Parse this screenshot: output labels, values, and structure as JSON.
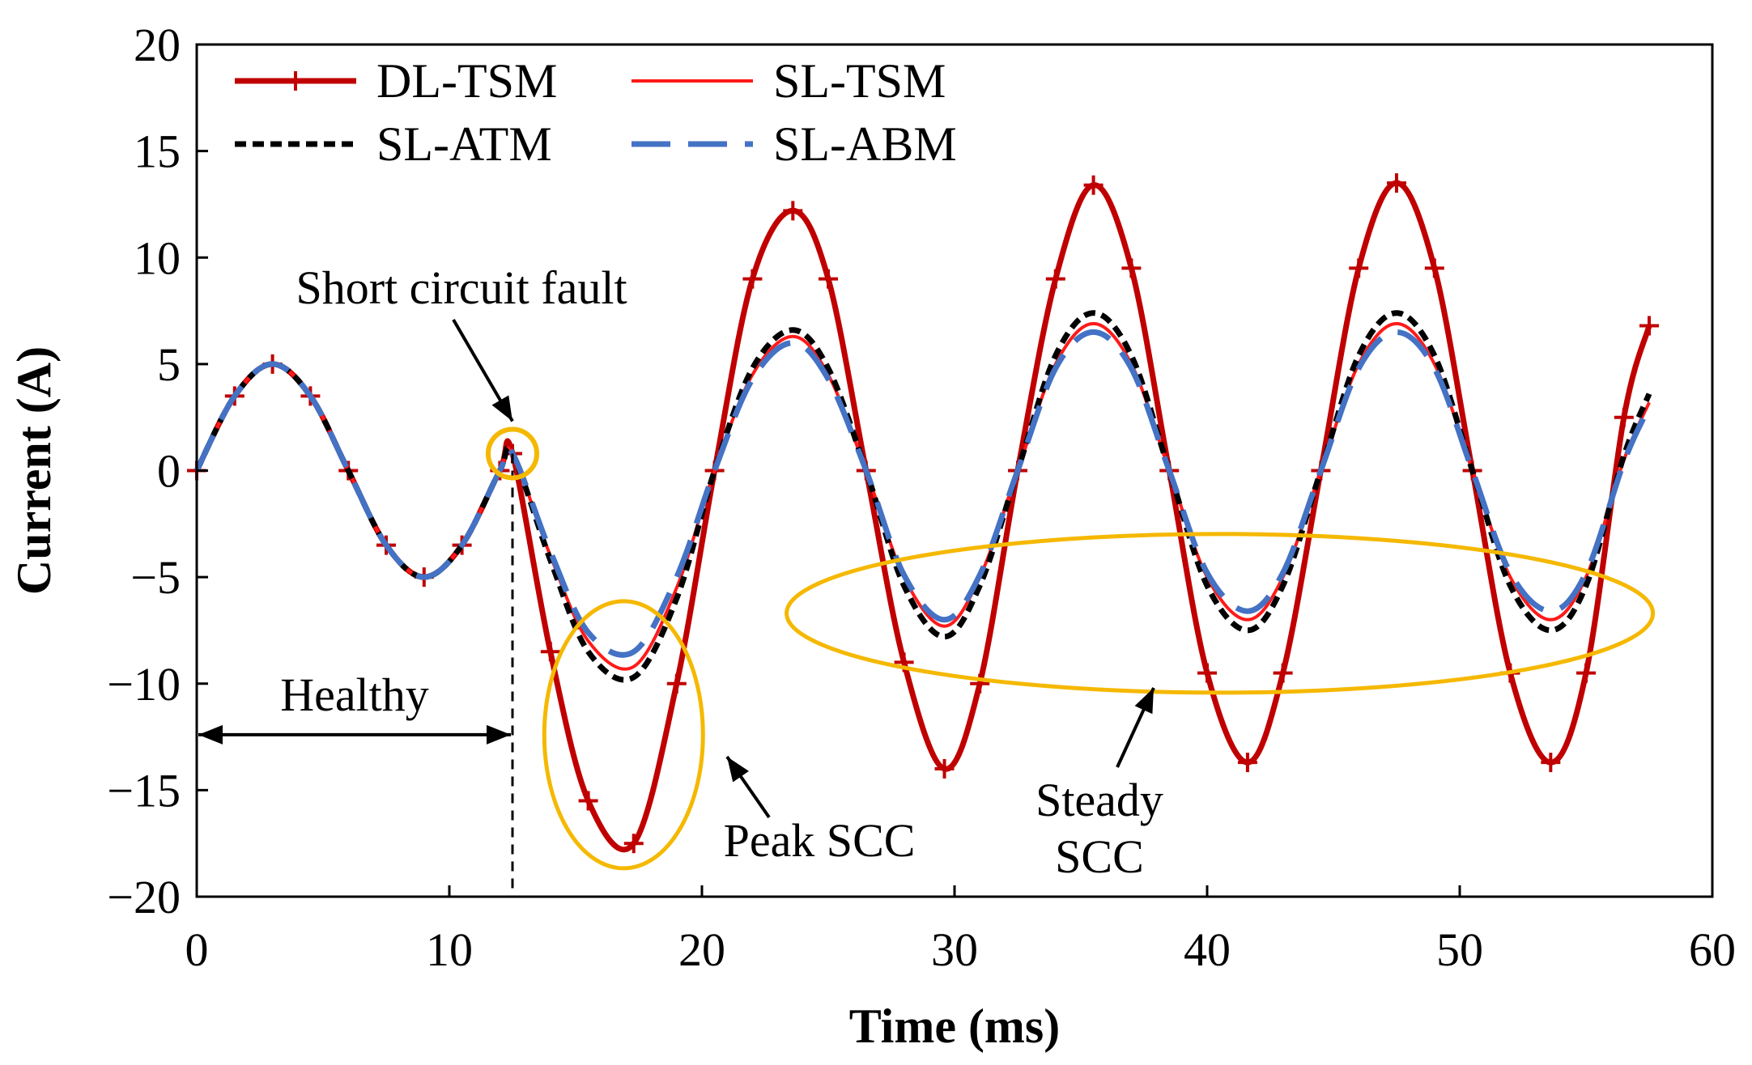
{
  "chart_data": {
    "type": "line",
    "title": "",
    "xlabel": "Time (ms)",
    "ylabel": "Current (A)",
    "xlim": [
      0,
      60
    ],
    "ylim": [
      -20,
      20
    ],
    "x_ticks": [
      0,
      10,
      20,
      30,
      40,
      50,
      60
    ],
    "y_ticks": [
      20,
      15,
      10,
      5,
      0,
      -5,
      -10,
      -15,
      -20
    ],
    "y_tick_labels": [
      "20",
      "15",
      "10",
      "5",
      "0",
      "−5",
      "−10",
      "−15",
      "−20"
    ],
    "grid": false,
    "legend_position": "top-left",
    "fault_time_ms": 12.5,
    "series": [
      {
        "name": "DL-TSM",
        "color": "#C00000",
        "style": "solid-with-plus-markers",
        "x": [
          0,
          1.5,
          3,
          4.5,
          6,
          7.5,
          9,
          10.5,
          12,
          12.5,
          14,
          15.5,
          17.3,
          19,
          20.5,
          22,
          23.6,
          25,
          26.5,
          28,
          29.6,
          31,
          32.5,
          34,
          35.5,
          37,
          38.5,
          40,
          41.6,
          43,
          44.5,
          46,
          47.5,
          49,
          50.5,
          52,
          53.6,
          55,
          56.5,
          57.5
        ],
        "values": [
          0,
          3.5,
          5,
          3.5,
          0,
          -3.5,
          -5,
          -3.5,
          0,
          0.8,
          -8.5,
          -15.5,
          -17.5,
          -10,
          0,
          9,
          12.2,
          9,
          0,
          -9,
          -14,
          -10,
          0,
          9,
          13.4,
          9.5,
          0,
          -9.5,
          -13.7,
          -9.5,
          0,
          9.5,
          13.5,
          9.5,
          0,
          -9.5,
          -13.7,
          -9.5,
          2.5,
          6.8
        ]
      },
      {
        "name": "SL-TSM",
        "color": "#FF1A1A",
        "style": "solid",
        "x": [
          0,
          1.5,
          3,
          4.5,
          6,
          7.5,
          9,
          10.5,
          12,
          12.5,
          14,
          15.5,
          17.3,
          19,
          20.5,
          22,
          23.6,
          25,
          26.5,
          28,
          29.6,
          31,
          32.5,
          34,
          35.5,
          37,
          38.5,
          40,
          41.6,
          43,
          44.5,
          46,
          47.5,
          49,
          50.5,
          52,
          53.6,
          55,
          56.5,
          57.5
        ],
        "values": [
          0,
          3.5,
          5,
          3.5,
          0,
          -3.5,
          -5,
          -3.5,
          0,
          0.8,
          -4,
          -8,
          -9.2,
          -5.5,
          0,
          4.5,
          6.3,
          4.5,
          0,
          -5,
          -7.3,
          -5,
          0,
          5,
          6.9,
          5,
          0,
          -5,
          -7,
          -5,
          0,
          5,
          6.9,
          5,
          0,
          -5,
          -7,
          -5,
          0.5,
          3.2
        ]
      },
      {
        "name": "SL-ATM",
        "color": "#000000",
        "style": "dashed",
        "x": [
          0,
          1.5,
          3,
          4.5,
          6,
          7.5,
          9,
          10.5,
          12,
          12.5,
          14,
          15.5,
          17.3,
          19,
          20.5,
          22,
          23.6,
          25,
          26.5,
          28,
          29.6,
          31,
          32.5,
          34,
          35.5,
          37,
          38.5,
          40,
          41.6,
          43,
          44.5,
          46,
          47.5,
          49,
          50.5,
          52,
          53.6,
          55,
          56.5,
          57.5
        ],
        "values": [
          0,
          3.5,
          5,
          3.5,
          0,
          -3.5,
          -5,
          -3.5,
          0,
          0.8,
          -4.2,
          -8.5,
          -9.7,
          -6,
          0,
          4.8,
          6.6,
          4.8,
          0,
          -5.4,
          -7.8,
          -5.4,
          0,
          5.4,
          7.4,
          5.4,
          0,
          -5.4,
          -7.5,
          -5.4,
          0,
          5.4,
          7.4,
          5.4,
          0,
          -5.4,
          -7.5,
          -5.4,
          0.7,
          3.6
        ]
      },
      {
        "name": "SL-ABM",
        "color": "#4472C4",
        "style": "long-dash",
        "x": [
          0,
          1.5,
          3,
          4.5,
          6,
          7.5,
          9,
          10.5,
          12,
          12.5,
          14,
          15.5,
          17.3,
          19,
          20.5,
          22,
          23.6,
          25,
          26.5,
          28,
          29.6,
          31,
          32.5,
          34,
          35.5,
          37,
          38.5,
          40,
          41.6,
          43,
          44.5,
          46,
          47.5,
          49,
          50.5,
          52,
          53.6,
          55,
          56.5,
          57.5
        ],
        "values": [
          0,
          3.5,
          5,
          3.5,
          0,
          -3.5,
          -5,
          -3.5,
          0,
          0.8,
          -3.8,
          -7.6,
          -8.5,
          -5,
          0,
          4.3,
          6,
          4.3,
          0,
          -4.9,
          -7,
          -4.9,
          0,
          4.8,
          6.5,
          4.8,
          0,
          -4.8,
          -6.6,
          -4.8,
          0,
          4.8,
          6.5,
          4.8,
          0,
          -4.8,
          -6.6,
          -4.8,
          0.4,
          3
        ]
      }
    ],
    "annotations": {
      "fault": "Short circuit fault",
      "healthy": "Healthy",
      "peak": "Peak SCC",
      "steady_line1": "Steady",
      "steady_line2": "SCC"
    },
    "highlight_color": "#F5B800"
  }
}
